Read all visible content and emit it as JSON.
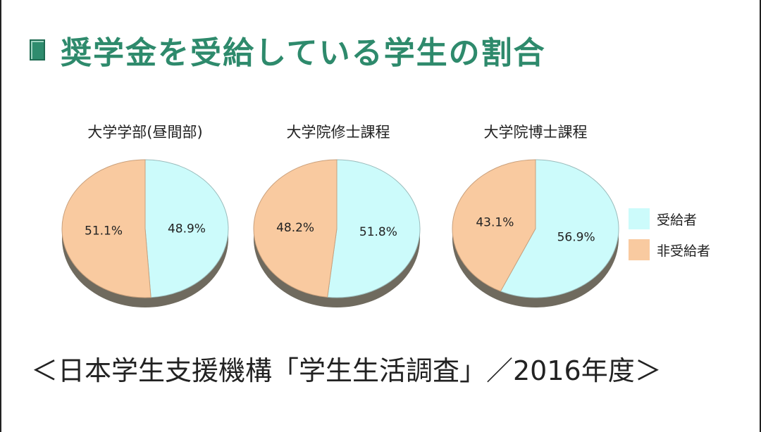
{
  "page": {
    "title": "奨学金を受給している学生の割合",
    "source": "＜日本学生支援機構「学生生活調査」／2016年度＞"
  },
  "legend": {
    "recipient_label": "受給者",
    "non_recipient_label": "非受給者"
  },
  "colors": {
    "recipient": "#ccfbfb",
    "non_recipient": "#f9caa0",
    "title": "#2e8a6c"
  },
  "chart_data": [
    {
      "type": "pie",
      "title": "大学学部(昼間部)",
      "slices": [
        {
          "label": "受給者",
          "value": 48.9,
          "text": "48.9%"
        },
        {
          "label": "非受給者",
          "value": 51.1,
          "text": "51.1%"
        }
      ]
    },
    {
      "type": "pie",
      "title": "大学院修士課程",
      "slices": [
        {
          "label": "受給者",
          "value": 51.8,
          "text": "51.8%"
        },
        {
          "label": "非受給者",
          "value": 48.2,
          "text": "48.2%"
        }
      ]
    },
    {
      "type": "pie",
      "title": "大学院博士課程",
      "slices": [
        {
          "label": "受給者",
          "value": 56.9,
          "text": "56.9%"
        },
        {
          "label": "非受給者",
          "value": 43.1,
          "text": "43.1%"
        }
      ]
    }
  ]
}
